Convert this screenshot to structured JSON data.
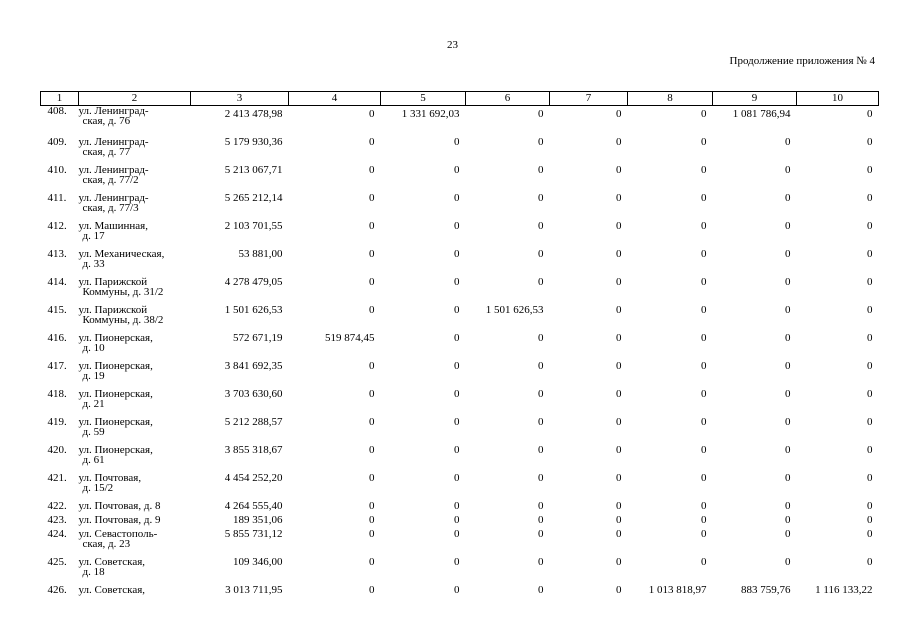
{
  "page": {
    "number": "23",
    "appendix_note": "Продолжение приложения № 4"
  },
  "table": {
    "columns": [
      "1",
      "2",
      "3",
      "4",
      "5",
      "6",
      "7",
      "8",
      "9",
      "10"
    ],
    "rows": [
      {
        "num": "408.",
        "addr": [
          "ул. Ленинград-",
          "ская, д. 76"
        ],
        "c3": "2 413 478,98",
        "c4": "0",
        "c5": "1 331 692,03",
        "c6": "0",
        "c7": "0",
        "c8": "0",
        "c9": "1 081 786,94",
        "c10": "0"
      },
      {
        "num": "409.",
        "addr": [
          "ул. Ленинград-",
          "ская, д. 77"
        ],
        "c3": "5 179 930,36",
        "c4": "0",
        "c5": "0",
        "c6": "0",
        "c7": "0",
        "c8": "0",
        "c9": "0",
        "c10": "0"
      },
      {
        "num": "410.",
        "addr": [
          "ул. Ленинград-",
          "ская, д. 77/2"
        ],
        "c3": "5 213 067,71",
        "c4": "0",
        "c5": "0",
        "c6": "0",
        "c7": "0",
        "c8": "0",
        "c9": "0",
        "c10": "0"
      },
      {
        "num": "411.",
        "addr": [
          "ул. Ленинград-",
          "ская, д. 77/3"
        ],
        "c3": "5 265 212,14",
        "c4": "0",
        "c5": "0",
        "c6": "0",
        "c7": "0",
        "c8": "0",
        "c9": "0",
        "c10": "0"
      },
      {
        "num": "412.",
        "addr": [
          "ул. Машинная,",
          "д. 17"
        ],
        "c3": "2 103 701,55",
        "c4": "0",
        "c5": "0",
        "c6": "0",
        "c7": "0",
        "c8": "0",
        "c9": "0",
        "c10": "0"
      },
      {
        "num": "413.",
        "addr": [
          "ул. Механическая,",
          "д. 33"
        ],
        "c3": "53 881,00",
        "c4": "0",
        "c5": "0",
        "c6": "0",
        "c7": "0",
        "c8": "0",
        "c9": "0",
        "c10": "0"
      },
      {
        "num": "414.",
        "addr": [
          "ул. Парижской",
          "Коммуны, д. 31/2"
        ],
        "c3": "4 278 479,05",
        "c4": "0",
        "c5": "0",
        "c6": "0",
        "c7": "0",
        "c8": "0",
        "c9": "0",
        "c10": "0"
      },
      {
        "num": "415.",
        "addr": [
          "ул. Парижской",
          "Коммуны, д. 38/2"
        ],
        "c3": "1 501 626,53",
        "c4": "0",
        "c5": "0",
        "c6": "1 501 626,53",
        "c7": "0",
        "c8": "0",
        "c9": "0",
        "c10": "0"
      },
      {
        "num": "416.",
        "addr": [
          "ул. Пионерская,",
          "д. 10"
        ],
        "c3": "572 671,19",
        "c4": "519 874,45",
        "c5": "0",
        "c6": "0",
        "c7": "0",
        "c8": "0",
        "c9": "0",
        "c10": "0"
      },
      {
        "num": "417.",
        "addr": [
          "ул. Пионерская,",
          "д. 19"
        ],
        "c3": "3 841 692,35",
        "c4": "0",
        "c5": "0",
        "c6": "0",
        "c7": "0",
        "c8": "0",
        "c9": "0",
        "c10": "0"
      },
      {
        "num": "418.",
        "addr": [
          "ул. Пионерская,",
          "д. 21"
        ],
        "c3": "3 703 630,60",
        "c4": "0",
        "c5": "0",
        "c6": "0",
        "c7": "0",
        "c8": "0",
        "c9": "0",
        "c10": "0"
      },
      {
        "num": "419.",
        "addr": [
          "ул. Пионерская,",
          "д. 59"
        ],
        "c3": "5 212 288,57",
        "c4": "0",
        "c5": "0",
        "c6": "0",
        "c7": "0",
        "c8": "0",
        "c9": "0",
        "c10": "0"
      },
      {
        "num": "420.",
        "addr": [
          "ул. Пионерская,",
          "д. 61"
        ],
        "c3": "3 855 318,67",
        "c4": "0",
        "c5": "0",
        "c6": "0",
        "c7": "0",
        "c8": "0",
        "c9": "0",
        "c10": "0"
      },
      {
        "num": "421.",
        "addr": [
          "ул. Почтовая,",
          "д. 15/2"
        ],
        "c3": "4 454 252,20",
        "c4": "0",
        "c5": "0",
        "c6": "0",
        "c7": "0",
        "c8": "0",
        "c9": "0",
        "c10": "0"
      },
      {
        "num": "422.",
        "addr": [
          "ул. Почтовая, д. 8"
        ],
        "c3": "4 264 555,40",
        "c4": "0",
        "c5": "0",
        "c6": "0",
        "c7": "0",
        "c8": "0",
        "c9": "0",
        "c10": "0"
      },
      {
        "num": "423.",
        "addr": [
          "ул. Почтовая, д. 9"
        ],
        "c3": "189 351,06",
        "c4": "0",
        "c5": "0",
        "c6": "0",
        "c7": "0",
        "c8": "0",
        "c9": "0",
        "c10": "0"
      },
      {
        "num": "424.",
        "addr": [
          "ул. Севастополь-",
          "ская, д. 23"
        ],
        "c3": "5 855 731,12",
        "c4": "0",
        "c5": "0",
        "c6": "0",
        "c7": "0",
        "c8": "0",
        "c9": "0",
        "c10": "0"
      },
      {
        "num": "425.",
        "addr": [
          "ул. Советская,",
          "д. 18"
        ],
        "c3": "109 346,00",
        "c4": "0",
        "c5": "0",
        "c6": "0",
        "c7": "0",
        "c8": "0",
        "c9": "0",
        "c10": "0"
      },
      {
        "num": "426.",
        "addr": [
          "ул. Советская,"
        ],
        "c3": "3 013 711,95",
        "c4": "0",
        "c5": "0",
        "c6": "0",
        "c7": "0",
        "c8": "1 013 818,97",
        "c9": "883 759,76",
        "c10": "1 116 133,22"
      }
    ]
  }
}
